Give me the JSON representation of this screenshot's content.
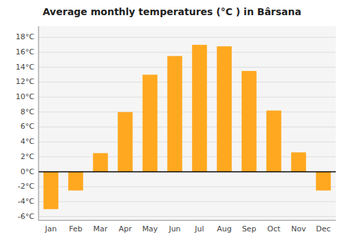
{
  "chart_data": {
    "type": "bar",
    "title": "Average monthly temperatures (°C ) in Bârsana",
    "categories": [
      "Jan",
      "Feb",
      "Mar",
      "Apr",
      "May",
      "Jun",
      "Jul",
      "Aug",
      "Sep",
      "Oct",
      "Nov",
      "Dec"
    ],
    "values": [
      -5.0,
      -2.5,
      2.5,
      8.0,
      13.0,
      15.5,
      17.0,
      16.8,
      13.5,
      8.2,
      2.6,
      -2.5
    ],
    "color": "#FFA820",
    "ylim": [
      -6.5,
      19.5
    ],
    "yticks": [
      {
        "value": -6,
        "label": "-6°C"
      },
      {
        "value": -4,
        "label": "-4°C"
      },
      {
        "value": -2,
        "label": "-2°C"
      },
      {
        "value": 0,
        "label": "0°C"
      },
      {
        "value": 2,
        "label": "2°C"
      },
      {
        "value": 4,
        "label": "4°C"
      },
      {
        "value": 6,
        "label": "6°C"
      },
      {
        "value": 8,
        "label": "8°C"
      },
      {
        "value": 10,
        "label": "10°C"
      },
      {
        "value": 12,
        "label": "12°C"
      },
      {
        "value": 14,
        "label": "14°C"
      },
      {
        "value": 16,
        "label": "16°C"
      },
      {
        "value": 18,
        "label": "18°C"
      }
    ],
    "grid": true
  }
}
